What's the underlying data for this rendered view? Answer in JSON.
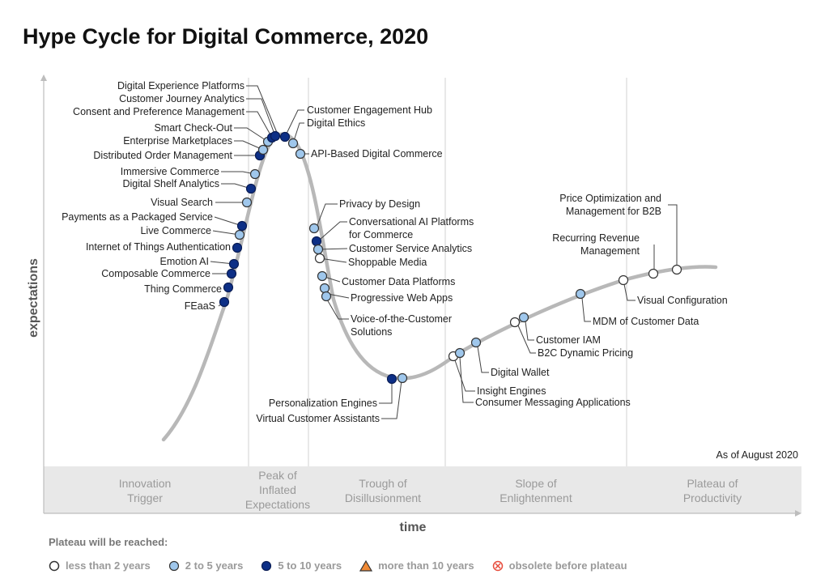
{
  "title": "Hype Cycle for Digital Commerce, 2020",
  "chart_data": {
    "type": "hype-cycle",
    "title": "Hype Cycle for Digital Commerce, 2020",
    "xlabel": "time",
    "ylabel": "expectations",
    "as_of": "As of August 2020",
    "phases": [
      {
        "name": "Innovation Trigger",
        "lines": [
          "Innovation",
          "Trigger"
        ]
      },
      {
        "name": "Peak of Inflated Expectations",
        "lines": [
          "Peak of",
          "Inflated",
          "Expectations"
        ]
      },
      {
        "name": "Trough of Disillusionment",
        "lines": [
          "Trough of",
          "Disillusionment"
        ]
      },
      {
        "name": "Slope of Enlightenment",
        "lines": [
          "Slope of",
          "Enlightenment"
        ]
      },
      {
        "name": "Plateau of Productivity",
        "lines": [
          "Plateau of",
          "Productivity"
        ]
      }
    ],
    "colors": {
      "less_than_2": "#ffffff",
      "2_to_5": "#9fc7ec",
      "5_to_10": "#0d2f86",
      "more_than_10": "#f08a36",
      "obsolete": "#e74c3c",
      "curve": "#b8b8b8"
    },
    "technologies": [
      {
        "name": "FEaaS",
        "category": "5_to_10"
      },
      {
        "name": "Thing Commerce",
        "category": "5_to_10"
      },
      {
        "name": "Composable Commerce",
        "category": "5_to_10"
      },
      {
        "name": "Emotion AI",
        "category": "5_to_10"
      },
      {
        "name": "Internet of Things Authentication",
        "category": "5_to_10"
      },
      {
        "name": "Live Commerce",
        "category": "2_to_5"
      },
      {
        "name": "Payments as a Packaged Service",
        "category": "5_to_10"
      },
      {
        "name": "Visual Search",
        "category": "2_to_5"
      },
      {
        "name": "Digital Shelf Analytics",
        "category": "5_to_10"
      },
      {
        "name": "Immersive Commerce",
        "category": "2_to_5"
      },
      {
        "name": "Distributed Order Management",
        "category": "2_to_5"
      },
      {
        "name": "Enterprise Marketplaces",
        "category": "5_to_10"
      },
      {
        "name": "Smart Check-Out",
        "category": "2_to_5"
      },
      {
        "name": "Consent and Preference Management",
        "category": "2_to_5"
      },
      {
        "name": "Customer Journey Analytics",
        "category": "5_to_10"
      },
      {
        "name": "Digital Experience Platforms",
        "category": "5_to_10"
      },
      {
        "name": "Customer Engagement Hub",
        "category": "5_to_10"
      },
      {
        "name": "Digital Ethics",
        "category": "2_to_5"
      },
      {
        "name": "API-Based Digital Commerce",
        "category": "2_to_5"
      },
      {
        "name": "Privacy by Design",
        "category": "2_to_5"
      },
      {
        "name": "Conversational AI Platforms for Commerce",
        "lines": [
          "Conversational AI Platforms",
          "for Commerce"
        ],
        "category": "5_to_10"
      },
      {
        "name": "Customer Service Analytics",
        "category": "2_to_5"
      },
      {
        "name": "Shoppable Media",
        "category": "less_than_2"
      },
      {
        "name": "Customer Data Platforms",
        "category": "2_to_5"
      },
      {
        "name": "Progressive Web Apps",
        "category": "2_to_5"
      },
      {
        "name": "Voice-of-the-Customer Solutions",
        "lines": [
          "Voice-of-the-Customer",
          "Solutions"
        ],
        "category": "2_to_5"
      },
      {
        "name": "Personalization Engines",
        "category": "5_to_10"
      },
      {
        "name": "Virtual Customer Assistants",
        "category": "2_to_5"
      },
      {
        "name": "Insight Engines",
        "category": "less_than_2"
      },
      {
        "name": "Consumer Messaging Applications",
        "category": "2_to_5"
      },
      {
        "name": "Digital Wallet",
        "category": "2_to_5"
      },
      {
        "name": "B2C Dynamic Pricing",
        "category": "less_than_2"
      },
      {
        "name": "Customer IAM",
        "category": "2_to_5"
      },
      {
        "name": "MDM of Customer Data",
        "category": "2_to_5"
      },
      {
        "name": "Visual Configuration",
        "category": "less_than_2"
      },
      {
        "name": "Recurring Revenue Management",
        "lines": [
          "Recurring Revenue",
          "Management"
        ],
        "category": "less_than_2"
      },
      {
        "name": "Price Optimization and Management for B2B",
        "lines": [
          "Price Optimization and",
          "Management for B2B"
        ],
        "category": "less_than_2"
      }
    ]
  },
  "legend": {
    "title": "Plateau will be reached:",
    "items": [
      {
        "key": "less_than_2",
        "label": "less than 2 years",
        "icon": "circle-empty-icon"
      },
      {
        "key": "2_to_5",
        "label": "2 to 5 years",
        "icon": "circle-light-blue-icon"
      },
      {
        "key": "5_to_10",
        "label": "5 to 10 years",
        "icon": "circle-dark-blue-icon"
      },
      {
        "key": "more_than_10",
        "label": "more than 10 years",
        "icon": "triangle-orange-icon"
      },
      {
        "key": "obsolete",
        "label": "obsolete before plateau",
        "icon": "crossed-circle-icon"
      }
    ]
  }
}
